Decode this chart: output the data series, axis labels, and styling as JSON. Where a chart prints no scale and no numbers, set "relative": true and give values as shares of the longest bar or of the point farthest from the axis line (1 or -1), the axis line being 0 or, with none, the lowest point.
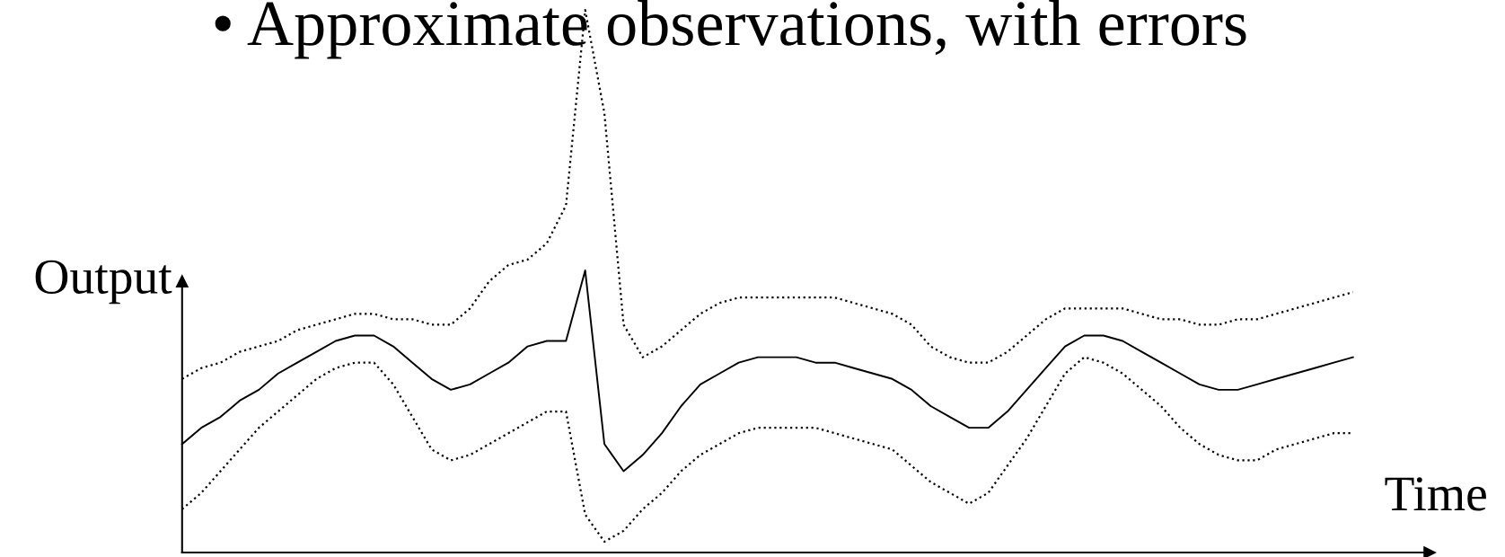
{
  "chart_data": {
    "type": "line",
    "title": "• Approximate observations, with errors",
    "xlabel": "Time",
    "ylabel": "Output",
    "relative": true,
    "categories": [
      null,
      null,
      null,
      null,
      null,
      null,
      null,
      null,
      null,
      null,
      null,
      null,
      null,
      null,
      null,
      null,
      null,
      null,
      null,
      null,
      null,
      null,
      null,
      null,
      null,
      null,
      null,
      null,
      null,
      null,
      null,
      null,
      null,
      null,
      null,
      null,
      null,
      null,
      null,
      null,
      null,
      null,
      null,
      null,
      null,
      null,
      null,
      null,
      null,
      null,
      null,
      null,
      null,
      null,
      null,
      null,
      null,
      null,
      null,
      null,
      null,
      null
    ],
    "series": [
      {
        "color": "#000000",
        "line_style": "solid",
        "values": [
          0.2,
          0.23,
          0.25,
          0.28,
          0.3,
          0.33,
          0.35,
          0.37,
          0.39,
          0.4,
          0.4,
          0.38,
          0.35,
          0.32,
          0.3,
          0.31,
          0.33,
          0.35,
          0.38,
          0.39,
          0.39,
          0.52,
          0.2,
          0.15,
          0.18,
          0.22,
          0.27,
          0.31,
          0.33,
          0.35,
          0.36,
          0.36,
          0.36,
          0.35,
          0.35,
          0.34,
          0.33,
          0.32,
          0.3,
          0.27,
          0.25,
          0.23,
          0.23,
          0.26,
          0.3,
          0.34,
          0.38,
          0.4,
          0.4,
          0.39,
          0.37,
          0.35,
          0.33,
          0.31,
          0.3,
          0.3,
          0.31,
          0.32,
          0.33,
          0.34,
          0.35,
          0.36
        ]
      },
      {
        "color": "#000000",
        "line_style": "dotted",
        "values": [
          0.32,
          0.34,
          0.35,
          0.37,
          0.38,
          0.39,
          0.41,
          0.42,
          0.43,
          0.44,
          0.44,
          0.43,
          0.43,
          0.42,
          0.42,
          0.45,
          0.5,
          0.53,
          0.54,
          0.57,
          0.64,
          1.0,
          0.81,
          0.42,
          0.36,
          0.38,
          0.41,
          0.44,
          0.46,
          0.47,
          0.47,
          0.47,
          0.47,
          0.47,
          0.47,
          0.46,
          0.45,
          0.44,
          0.42,
          0.38,
          0.36,
          0.35,
          0.35,
          0.37,
          0.4,
          0.43,
          0.45,
          0.45,
          0.45,
          0.45,
          0.44,
          0.43,
          0.43,
          0.42,
          0.42,
          0.43,
          0.43,
          0.44,
          0.45,
          0.46,
          0.47,
          0.48
        ]
      },
      {
        "color": "#000000",
        "line_style": "dotted",
        "values": [
          0.08,
          0.11,
          0.15,
          0.19,
          0.23,
          0.26,
          0.29,
          0.32,
          0.34,
          0.35,
          0.35,
          0.31,
          0.25,
          0.19,
          0.17,
          0.18,
          0.2,
          0.22,
          0.24,
          0.26,
          0.26,
          0.07,
          0.02,
          0.04,
          0.08,
          0.11,
          0.15,
          0.18,
          0.2,
          0.22,
          0.23,
          0.23,
          0.23,
          0.23,
          0.22,
          0.21,
          0.2,
          0.19,
          0.16,
          0.13,
          0.11,
          0.09,
          0.11,
          0.16,
          0.21,
          0.27,
          0.33,
          0.36,
          0.35,
          0.33,
          0.3,
          0.27,
          0.23,
          0.2,
          0.18,
          0.17,
          0.17,
          0.19,
          0.2,
          0.21,
          0.22,
          0.22
        ]
      }
    ]
  }
}
